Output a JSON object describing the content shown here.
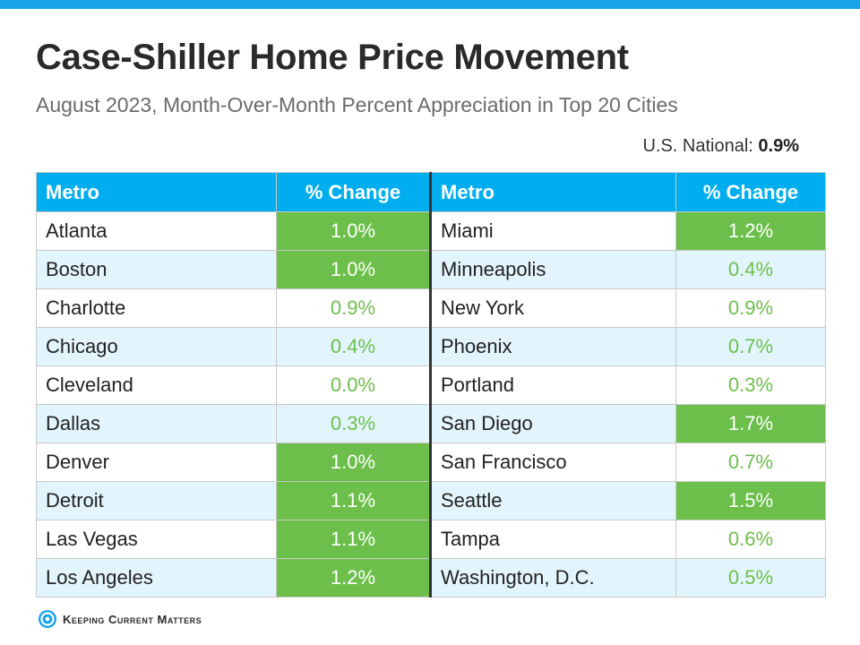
{
  "header": {
    "title": "Case-Shiller Home Price Movement",
    "subtitle": "August 2023, Month-Over-Month Percent Appreciation in Top 20 Cities",
    "national_label": "U.S. National:",
    "national_value": "0.9%"
  },
  "table": {
    "columns": [
      "Metro",
      "% Change",
      "Metro",
      "% Change"
    ]
  },
  "chart_data": {
    "type": "table",
    "title": "Case-Shiller Home Price Movement",
    "subtitle": "August 2023, Month-Over-Month Percent Appreciation in Top 20 Cities",
    "columns": [
      "Metro",
      "% Change"
    ],
    "highlight_color": "#6cbf4b",
    "rows": [
      {
        "metro": "Atlanta",
        "change": "1.0%",
        "highlight": true
      },
      {
        "metro": "Boston",
        "change": "1.0%",
        "highlight": true
      },
      {
        "metro": "Charlotte",
        "change": "0.9%",
        "highlight": false
      },
      {
        "metro": "Chicago",
        "change": "0.4%",
        "highlight": false
      },
      {
        "metro": "Cleveland",
        "change": "0.0%",
        "highlight": false
      },
      {
        "metro": "Dallas",
        "change": "0.3%",
        "highlight": false
      },
      {
        "metro": "Denver",
        "change": "1.0%",
        "highlight": true
      },
      {
        "metro": "Detroit",
        "change": "1.1%",
        "highlight": true
      },
      {
        "metro": "Las Vegas",
        "change": "1.1%",
        "highlight": true
      },
      {
        "metro": "Los Angeles",
        "change": "1.2%",
        "highlight": true
      },
      {
        "metro": "Miami",
        "change": "1.2%",
        "highlight": true
      },
      {
        "metro": "Minneapolis",
        "change": "0.4%",
        "highlight": false
      },
      {
        "metro": "New York",
        "change": "0.9%",
        "highlight": false
      },
      {
        "metro": "Phoenix",
        "change": "0.7%",
        "highlight": false
      },
      {
        "metro": "Portland",
        "change": "0.3%",
        "highlight": false
      },
      {
        "metro": "San Diego",
        "change": "1.7%",
        "highlight": true
      },
      {
        "metro": "San Francisco",
        "change": "0.7%",
        "highlight": false
      },
      {
        "metro": "Seattle",
        "change": "1.5%",
        "highlight": true
      },
      {
        "metro": "Tampa",
        "change": "0.6%",
        "highlight": false
      },
      {
        "metro": "Washington, D.C.",
        "change": "0.5%",
        "highlight": false
      }
    ]
  },
  "footer": {
    "logo_text": "Keeping Current Matters",
    "logo_icon": "kcm-logo-icon"
  },
  "colors": {
    "header_bg": "#00aeef",
    "top_bar": "#1aa3e8",
    "alt_row": "#e3f5fc",
    "green": "#6cbf4b"
  }
}
